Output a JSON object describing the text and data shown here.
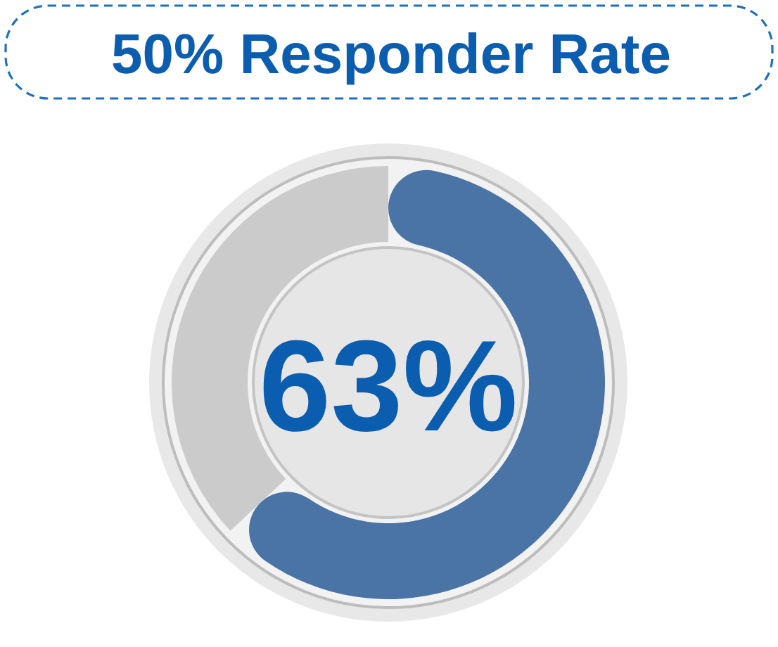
{
  "chart_data": {
    "type": "donut",
    "title": "50% Responder Rate",
    "categories": [
      null,
      null
    ],
    "values": [
      63,
      37
    ],
    "colors": [
      "#4a73a6",
      "#cbcbcb"
    ],
    "value_labels": [
      "63%",
      null
    ]
  }
}
